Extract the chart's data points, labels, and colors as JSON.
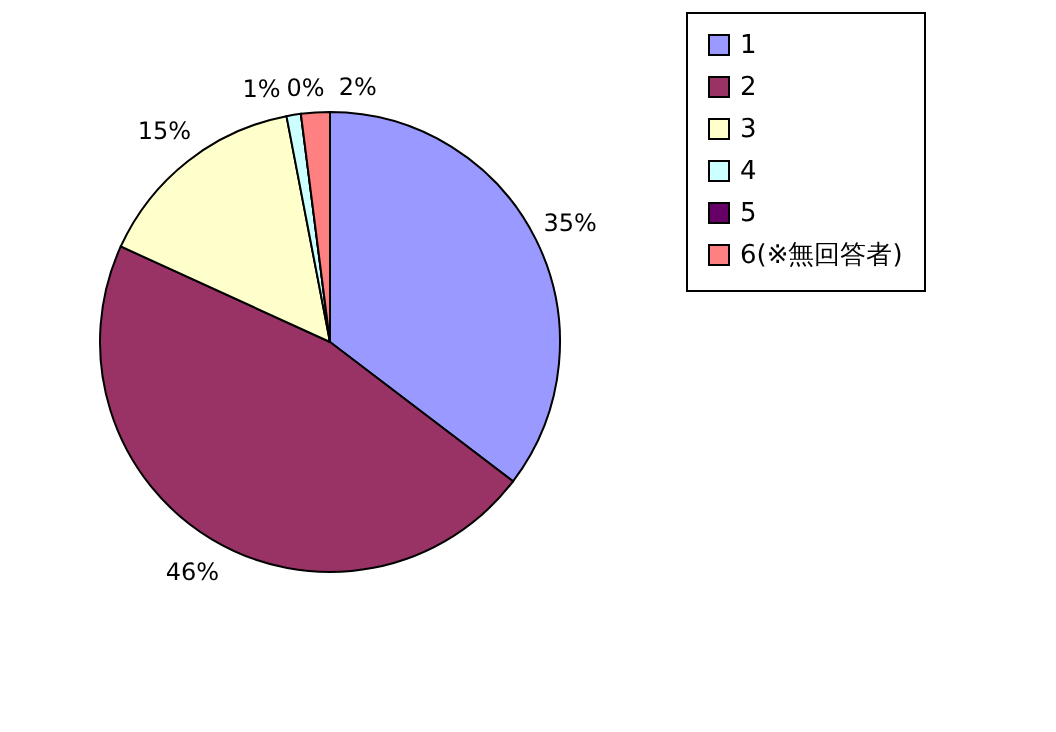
{
  "chart_data": {
    "type": "pie",
    "categories": [
      "1",
      "2",
      "3",
      "4",
      "5",
      "6(※無回答者)"
    ],
    "values": [
      35,
      46,
      15,
      1,
      0,
      2
    ],
    "value_labels": [
      "35%",
      "46%",
      "15%",
      "1%",
      "0%",
      "2%"
    ],
    "colors": [
      "#9999ff",
      "#993366",
      "#ffffcc",
      "#ccffff",
      "#660066",
      "#ff8080"
    ],
    "legend": "right"
  }
}
